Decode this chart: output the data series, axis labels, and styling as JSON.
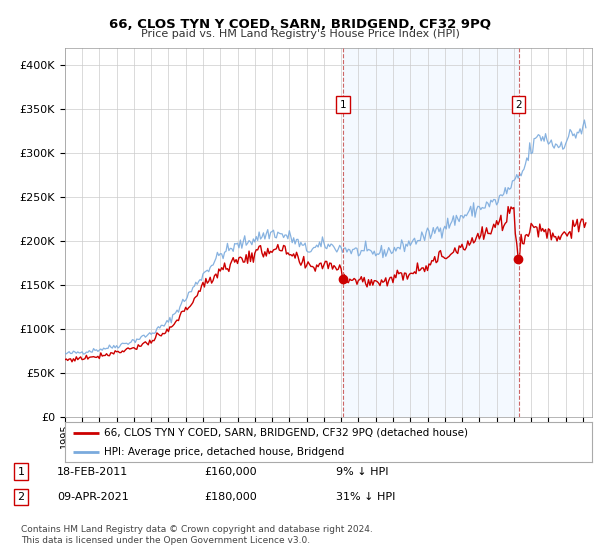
{
  "title": "66, CLOS TYN Y COED, SARN, BRIDGEND, CF32 9PQ",
  "subtitle": "Price paid vs. HM Land Registry's House Price Index (HPI)",
  "ylim": [
    0,
    420000
  ],
  "yticks": [
    0,
    50000,
    100000,
    150000,
    200000,
    250000,
    300000,
    350000,
    400000
  ],
  "xlim_start": 1995.0,
  "xlim_end": 2025.5,
  "transaction1_date": 2011.12,
  "transaction1_price": 160000,
  "transaction2_date": 2021.27,
  "transaction2_price": 180000,
  "legend_property": "66, CLOS TYN Y COED, SARN, BRIDGEND, CF32 9PQ (detached house)",
  "legend_hpi": "HPI: Average price, detached house, Bridgend",
  "annotation1_date": "18-FEB-2011",
  "annotation1_price": "£160,000",
  "annotation1_pct": "9% ↓ HPI",
  "annotation2_date": "09-APR-2021",
  "annotation2_price": "£180,000",
  "annotation2_pct": "31% ↓ HPI",
  "footer": "Contains HM Land Registry data © Crown copyright and database right 2024.\nThis data is licensed under the Open Government Licence v3.0.",
  "property_color": "#cc0000",
  "hpi_color": "#7aaadd",
  "shading_color": "#ddeeff",
  "grid_color": "#cccccc",
  "background_color": "#ffffff",
  "hpi_keypoints_years": [
    1995.0,
    1996.0,
    1997.0,
    1998.0,
    1999.0,
    2000.0,
    2001.0,
    2002.0,
    2003.0,
    2004.0,
    2005.0,
    2006.0,
    2007.0,
    2008.0,
    2008.5,
    2009.0,
    2009.5,
    2010.0,
    2011.0,
    2011.5,
    2012.0,
    2013.0,
    2014.0,
    2015.0,
    2016.0,
    2017.0,
    2018.0,
    2019.0,
    2020.0,
    2020.5,
    2021.0,
    2021.5,
    2022.0,
    2022.5,
    2023.0,
    2023.5,
    2024.0,
    2024.5,
    2025.2
  ],
  "hpi_keypoints_values": [
    72000,
    74000,
    77000,
    81000,
    87000,
    95000,
    108000,
    135000,
    162000,
    185000,
    195000,
    203000,
    210000,
    205000,
    198000,
    190000,
    192000,
    196000,
    192000,
    190000,
    188000,
    186000,
    190000,
    198000,
    207000,
    218000,
    228000,
    238000,
    245000,
    255000,
    265000,
    278000,
    305000,
    320000,
    315000,
    308000,
    315000,
    322000,
    330000
  ],
  "prop_keypoints_years": [
    1995.0,
    1996.0,
    1997.0,
    1998.0,
    1999.0,
    2000.0,
    2001.0,
    2002.0,
    2003.0,
    2004.0,
    2005.0,
    2006.0,
    2007.0,
    2008.0,
    2008.5,
    2009.0,
    2009.5,
    2010.0,
    2011.0,
    2011.12,
    2011.5,
    2012.0,
    2013.0,
    2014.0,
    2015.0,
    2016.0,
    2017.0,
    2018.0,
    2019.0,
    2020.0,
    2020.5,
    2021.0,
    2021.27,
    2021.35,
    2022.0,
    2022.5,
    2023.0,
    2023.5,
    2024.0,
    2024.5,
    2025.2
  ],
  "prop_keypoints_values": [
    65000,
    67000,
    70000,
    74000,
    79000,
    86000,
    98000,
    122000,
    148000,
    168000,
    178000,
    185000,
    192000,
    185000,
    178000,
    170000,
    172000,
    175000,
    170000,
    160000,
    158000,
    155000,
    153000,
    158000,
    165000,
    174000,
    183000,
    195000,
    205000,
    215000,
    225000,
    238000,
    180000,
    195000,
    215000,
    215000,
    210000,
    205000,
    210000,
    215000,
    218000
  ]
}
